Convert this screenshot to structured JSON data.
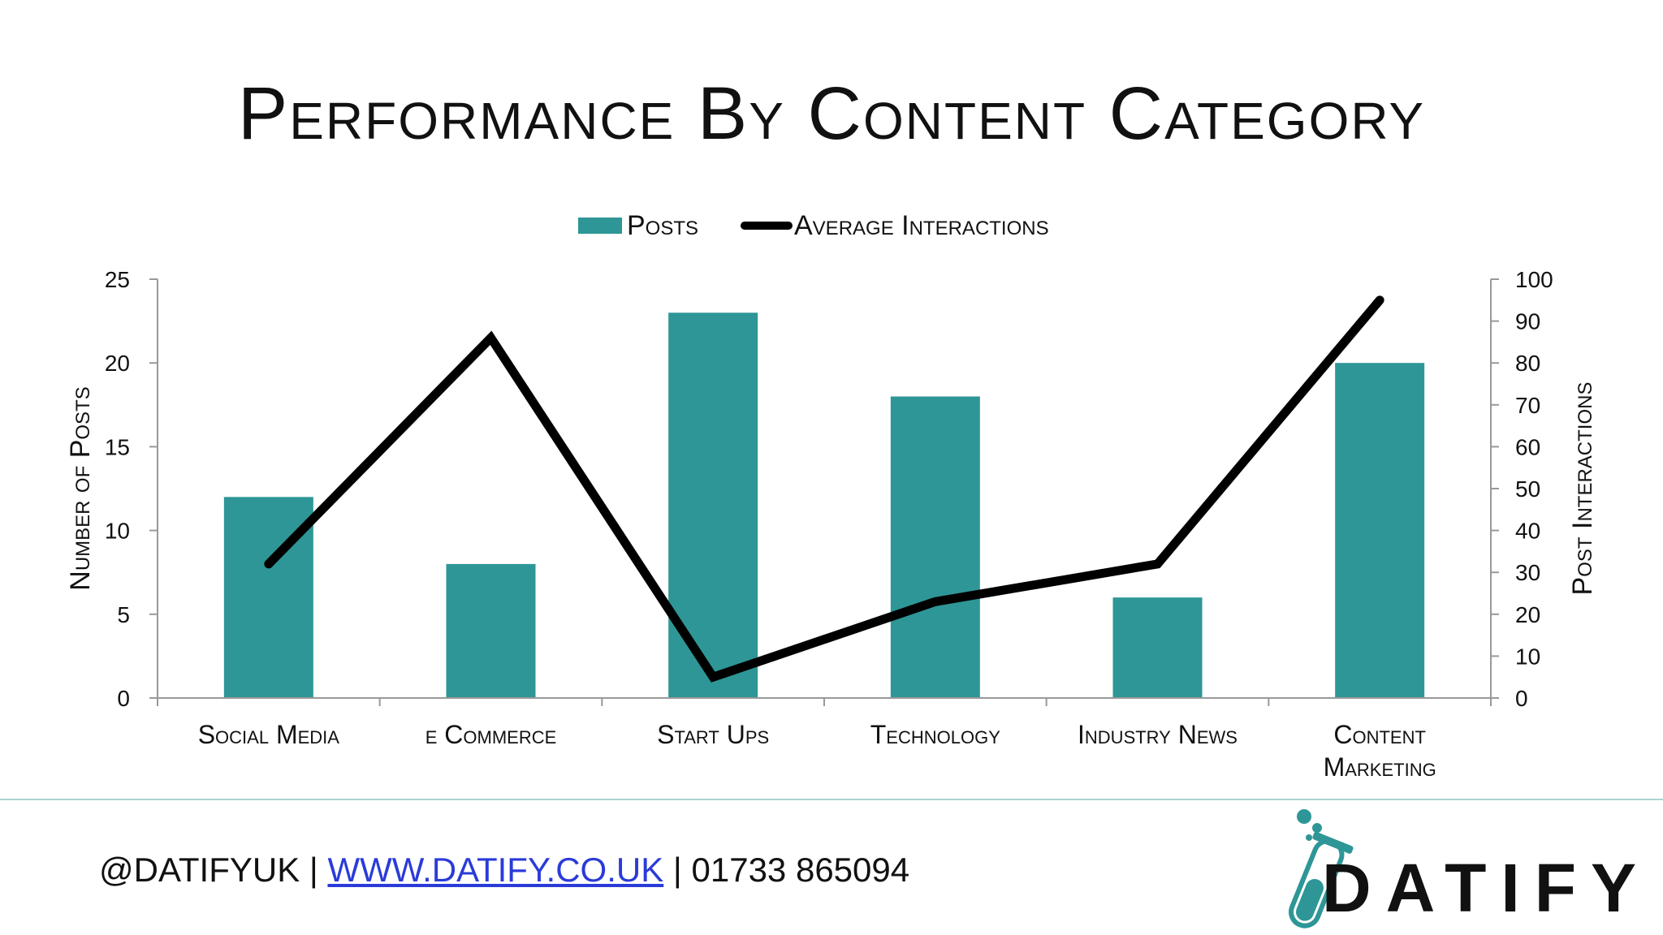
{
  "title": "Performance By Content Category",
  "legend": {
    "bar_label": "Posts",
    "line_label": "Average Interactions"
  },
  "colors": {
    "bar": "#2e9696",
    "line": "#000000",
    "axis": "#999999",
    "footer_rule": "#a9d4d2",
    "link": "#2a3bd8"
  },
  "chart_data": {
    "type": "bar",
    "categories": [
      "Social Media",
      "e Commerce",
      "Start Ups",
      "Technology",
      "Industry News",
      "Content Marketing"
    ],
    "series": [
      {
        "name": "Posts",
        "type": "bar",
        "axis": "left",
        "values": [
          12,
          8,
          23,
          18,
          6,
          20
        ]
      },
      {
        "name": "Average Interactions",
        "type": "line",
        "axis": "right",
        "values": [
          32,
          86,
          5,
          23,
          32,
          95
        ]
      }
    ],
    "ylabel": "Number of Posts",
    "y2label": "Post Interactions",
    "ylim": [
      0,
      25
    ],
    "y2lim": [
      0,
      100
    ],
    "yticks": [
      "0",
      "5",
      "10",
      "15",
      "20",
      "25"
    ],
    "y2ticks": [
      "0",
      "10",
      "20",
      "30",
      "40",
      "50",
      "60",
      "70",
      "80",
      "90",
      "100"
    ],
    "grid": false,
    "legend_position": "top"
  },
  "footer": {
    "handle": "@DATIFYUK",
    "separator": "|",
    "website": "WWW.DATIFY.CO.UK",
    "phone": "01733 865094",
    "logo_text": "DATIFY",
    "logo_icon": "test-tube-icon"
  }
}
